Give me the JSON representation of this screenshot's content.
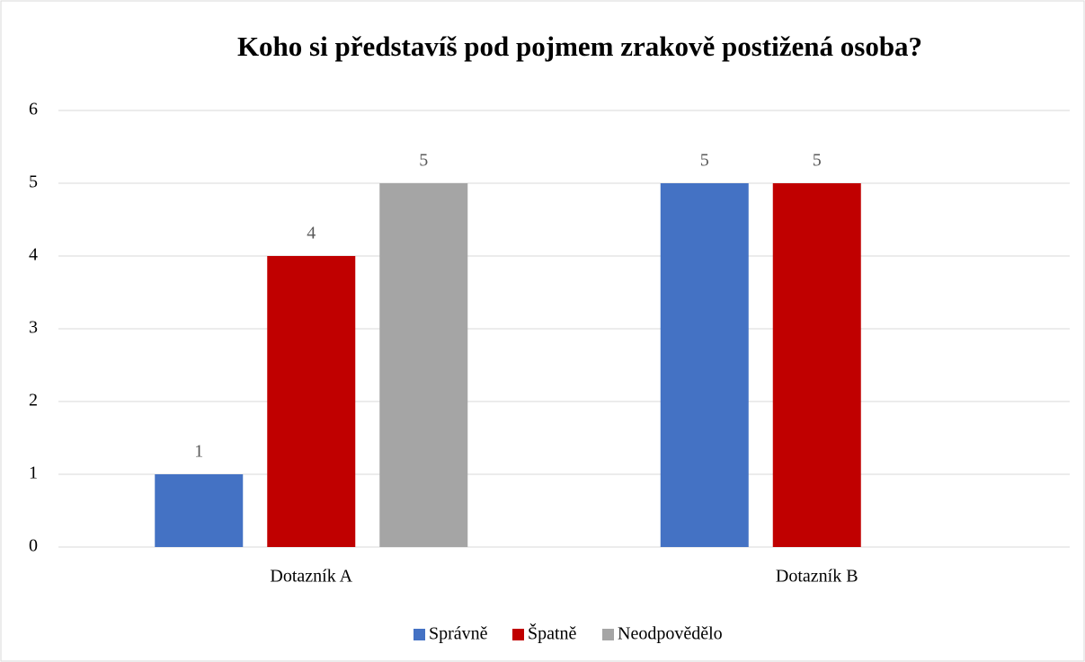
{
  "chart_data": {
    "type": "bar",
    "title": "Koho si představíš pod pojmem zrakově postižená osoba?",
    "categories": [
      "Dotazník A",
      "Dotazník B"
    ],
    "series": [
      {
        "name": "Správně",
        "color": "#4472c4",
        "values": [
          1,
          5
        ]
      },
      {
        "name": "Špatně",
        "color": "#c00000",
        "values": [
          4,
          5
        ]
      },
      {
        "name": "Neodpovědělo",
        "color": "#a5a5a5",
        "values": [
          5,
          null
        ]
      }
    ],
    "ylim": [
      0,
      6
    ],
    "yticks": [
      0,
      1,
      2,
      3,
      4,
      5,
      6
    ],
    "grid": true,
    "legend": "bottom"
  }
}
